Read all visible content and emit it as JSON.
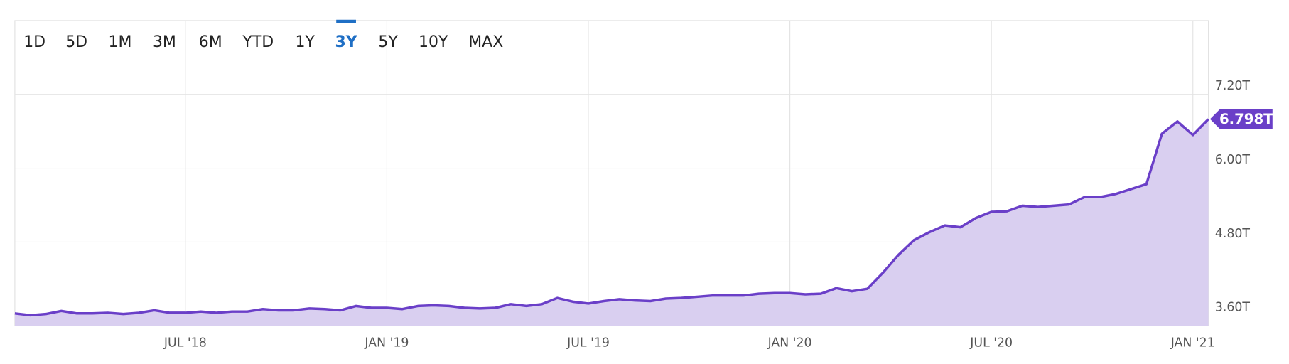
{
  "chart_data": {
    "type": "area",
    "range_buttons": [
      "1D",
      "5D",
      "1M",
      "3M",
      "6M",
      "YTD",
      "1Y",
      "3Y",
      "5Y",
      "10Y",
      "MAX"
    ],
    "selected_range": "3Y",
    "categories": [
      null,
      null,
      null,
      null,
      null,
      null,
      null,
      null,
      null,
      null,
      null,
      "JUL '18",
      null,
      null,
      null,
      null,
      null,
      null,
      null,
      null,
      null,
      null,
      null,
      null,
      "JAN '19",
      null,
      null,
      null,
      null,
      null,
      null,
      null,
      null,
      null,
      null,
      null,
      null,
      "JUL '19",
      null,
      null,
      null,
      null,
      null,
      null,
      null,
      null,
      null,
      null,
      null,
      null,
      "JAN '20",
      null,
      null,
      null,
      null,
      null,
      null,
      null,
      null,
      null,
      null,
      null,
      null,
      "JUL '20",
      null,
      null,
      null,
      null,
      null,
      null,
      null,
      null,
      null,
      null,
      null,
      null,
      "JAN '21",
      null
    ],
    "values": [
      3.64,
      3.61,
      3.63,
      3.68,
      3.64,
      3.64,
      3.65,
      3.63,
      3.65,
      3.69,
      3.65,
      3.65,
      3.67,
      3.65,
      3.67,
      3.67,
      3.71,
      3.69,
      3.69,
      3.72,
      3.71,
      3.69,
      3.76,
      3.73,
      3.73,
      3.71,
      3.76,
      3.77,
      3.76,
      3.73,
      3.72,
      3.73,
      3.79,
      3.76,
      3.79,
      3.89,
      3.83,
      3.8,
      3.84,
      3.87,
      3.85,
      3.84,
      3.88,
      3.89,
      3.91,
      3.93,
      3.93,
      3.93,
      3.96,
      3.97,
      3.97,
      3.95,
      3.96,
      4.05,
      4.0,
      4.04,
      4.3,
      4.59,
      4.83,
      4.96,
      5.07,
      5.04,
      5.19,
      5.29,
      5.3,
      5.39,
      5.37,
      5.39,
      5.41,
      5.53,
      5.53,
      5.58,
      5.66,
      5.74,
      6.56,
      6.76,
      6.54,
      6.798
    ],
    "value_labels": [
      null,
      null,
      null,
      null,
      null,
      null,
      null,
      null,
      null,
      null,
      null,
      null,
      null,
      null,
      null,
      null,
      null,
      null,
      null,
      null,
      null,
      null,
      null,
      null,
      null,
      null,
      null,
      null,
      null,
      null,
      null,
      null,
      null,
      null,
      null,
      null,
      null,
      null,
      null,
      null,
      null,
      null,
      null,
      null,
      null,
      null,
      null,
      null,
      null,
      null,
      null,
      null,
      null,
      null,
      null,
      null,
      null,
      null,
      null,
      null,
      null,
      null,
      null,
      null,
      null,
      null,
      null,
      null,
      null,
      null,
      null,
      null,
      null,
      null,
      null,
      null,
      null,
      "6.798T"
    ],
    "ylim": [
      3.44,
      8.4
    ],
    "yticks": [
      {
        "value": 3.6,
        "label": "3.60T"
      },
      {
        "value": 4.8,
        "label": "4.80T"
      },
      {
        "value": 6.0,
        "label": "6.00T"
      },
      {
        "value": 7.2,
        "label": "7.20T"
      }
    ],
    "grid": true,
    "color": "#6a3fc8",
    "fill_color": "#d9cff0",
    "selected_color": "#1f6fc5"
  }
}
